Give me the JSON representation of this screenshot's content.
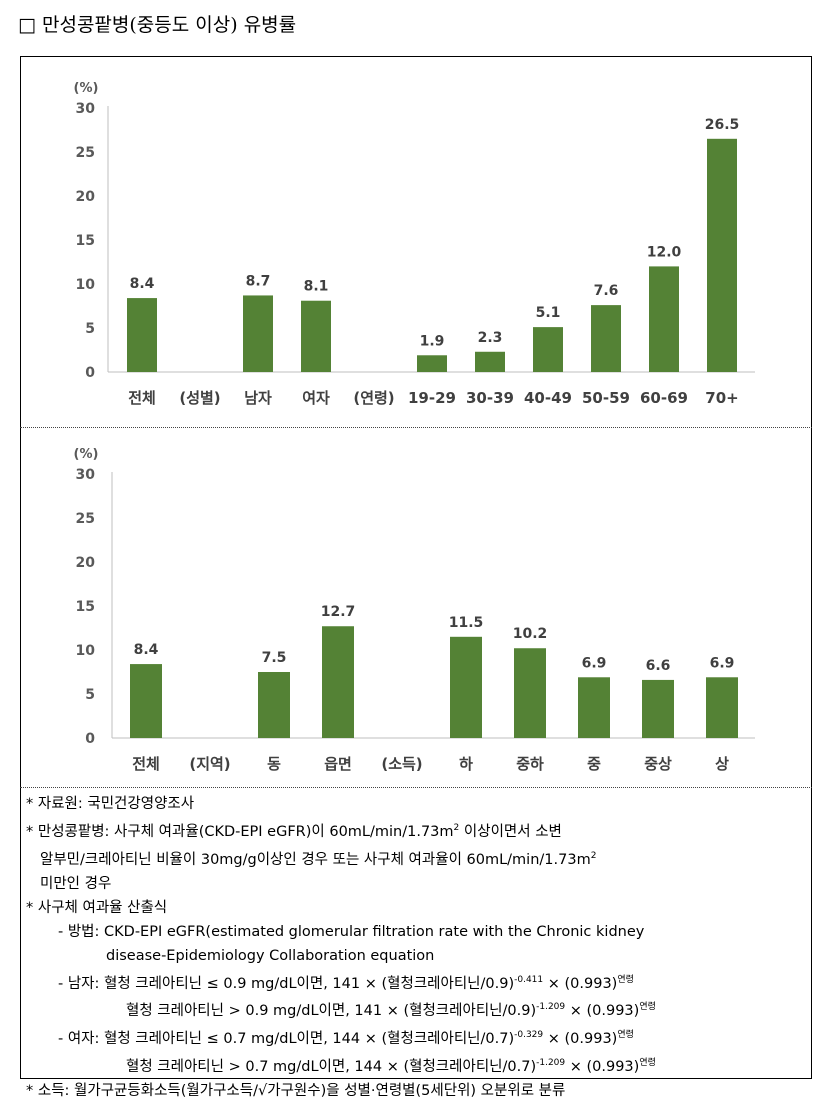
{
  "title": "□ 만성콩팥병(중등도 이상) 유병률",
  "chart_data": [
    {
      "type": "bar",
      "ylabel": "(%)",
      "ylim": [
        0,
        30
      ],
      "yticks": [
        0,
        5,
        10,
        15,
        20,
        25,
        30
      ],
      "categories": [
        "전체",
        "(성별)",
        "남자",
        "여자",
        "(연령)",
        "19-29",
        "30-39",
        "40-49",
        "50-59",
        "60-69",
        "70+"
      ],
      "values": [
        8.4,
        null,
        8.7,
        8.1,
        null,
        1.9,
        2.3,
        5.1,
        7.6,
        12.0,
        26.5
      ],
      "labels": [
        "8.4",
        "",
        "8.7",
        "8.1",
        "",
        "1.9",
        "2.3",
        "5.1",
        "7.6",
        "12.0",
        "26.5"
      ],
      "color": "#548235",
      "grid": false
    },
    {
      "type": "bar",
      "ylabel": "(%)",
      "ylim": [
        0,
        30
      ],
      "yticks": [
        0,
        5,
        10,
        15,
        20,
        25,
        30
      ],
      "categories": [
        "전체",
        "(지역)",
        "동",
        "읍면",
        "(소득)",
        "하",
        "중하",
        "중",
        "중상",
        "상"
      ],
      "values": [
        8.4,
        null,
        7.5,
        12.7,
        null,
        11.5,
        10.2,
        6.9,
        6.6,
        6.9
      ],
      "labels": [
        "8.4",
        "",
        "7.5",
        "12.7",
        "",
        "11.5",
        "10.2",
        "6.9",
        "6.6",
        "6.9"
      ],
      "color": "#548235",
      "grid": false
    }
  ],
  "notes": {
    "source": "* 자료원: 국민건강영양조사",
    "ckd_1": "* 만성콩팥병: 사구체 여과율(CKD-EPI eGFR)이 60mL/min/1.73m",
    "ckd_1b": " 이상이면서 소변",
    "ckd_2": "알부민/크레아티닌 비율이 30mg/g이상인 경우 또는 사구체 여과율이 60mL/min/1.73m",
    "ckd_3": "미만인 경우",
    "sup2": "2",
    "gfr_title": "* 사구체 여과율 산출식",
    "method_1": "- 방법: CKD-EPI eGFR(estimated glomerular filtration rate with the Chronic kidney",
    "method_2": "disease-Epidemiology Collaboration equation",
    "male_1": "- 남자: 혈청 크레아티닌 ≤ 0.9 mg/dL이면, 141 × (혈청크레아티닌/0.9)",
    "male_1_exp": "-0.411",
    "male_2": "혈청 크레아티닌 > 0.9 mg/dL이면, 141 × (혈청크레아티닌/0.9)",
    "male_2_exp": "-1.209",
    "female_1": "- 여자: 혈청 크레아티닌 ≤ 0.7 mg/dL이면, 144 × (혈청크레아티닌/0.7)",
    "female_1_exp": "-0.329",
    "female_2": "혈청 크레아티닌 > 0.7 mg/dL이면, 144 × (혈청크레아티닌/0.7)",
    "female_2_exp": "-1.209",
    "age_factor": " × (0.993)",
    "age_exp": "연령",
    "income": "* 소득: 월가구균등화소득(월가구소득/√가구원수)을 성별·연령별(5세단위) 오분위로 분류"
  }
}
